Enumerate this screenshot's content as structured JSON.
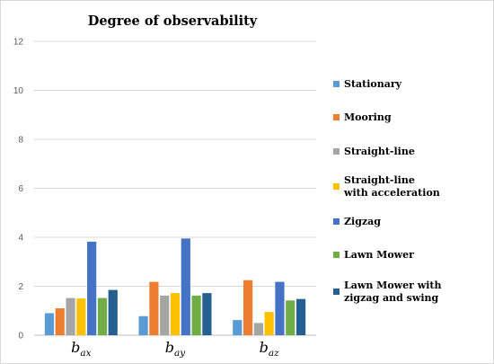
{
  "chart_data": {
    "type": "bar",
    "title": "Degree of observability",
    "xlabel": "",
    "ylabel": "",
    "ylim": [
      0,
      12
    ],
    "yticks": [
      "0",
      "2",
      "4",
      "6",
      "8",
      "10",
      "12"
    ],
    "grid": true,
    "legend_position": "right",
    "categories": [
      {
        "base": "b",
        "sub": "ax"
      },
      {
        "base": "b",
        "sub": "ay"
      },
      {
        "base": "b",
        "sub": "az"
      }
    ],
    "series": [
      {
        "name": [
          "Stationary"
        ],
        "color": "#5b9bd5",
        "values": [
          0.9,
          0.78,
          0.62
        ]
      },
      {
        "name": [
          "Mooring"
        ],
        "color": "#ed7d31",
        "values": [
          1.1,
          2.18,
          2.25
        ]
      },
      {
        "name": [
          "Straight-line"
        ],
        "color": "#a5a5a5",
        "values": [
          1.52,
          1.62,
          0.5
        ]
      },
      {
        "name": [
          "Straight-line",
          "with acceleration"
        ],
        "color": "#ffc000",
        "values": [
          1.5,
          1.72,
          0.95
        ]
      },
      {
        "name": [
          "Zigzag"
        ],
        "color": "#4472c4",
        "values": [
          3.82,
          3.95,
          2.18
        ]
      },
      {
        "name": [
          "Lawn Mower"
        ],
        "color": "#70ad47",
        "values": [
          1.52,
          1.62,
          1.42
        ]
      },
      {
        "name": [
          "Lawn Mower with",
          "zigzag and swing"
        ],
        "color": "#255e91",
        "values": [
          1.85,
          1.72,
          1.48
        ]
      }
    ]
  }
}
